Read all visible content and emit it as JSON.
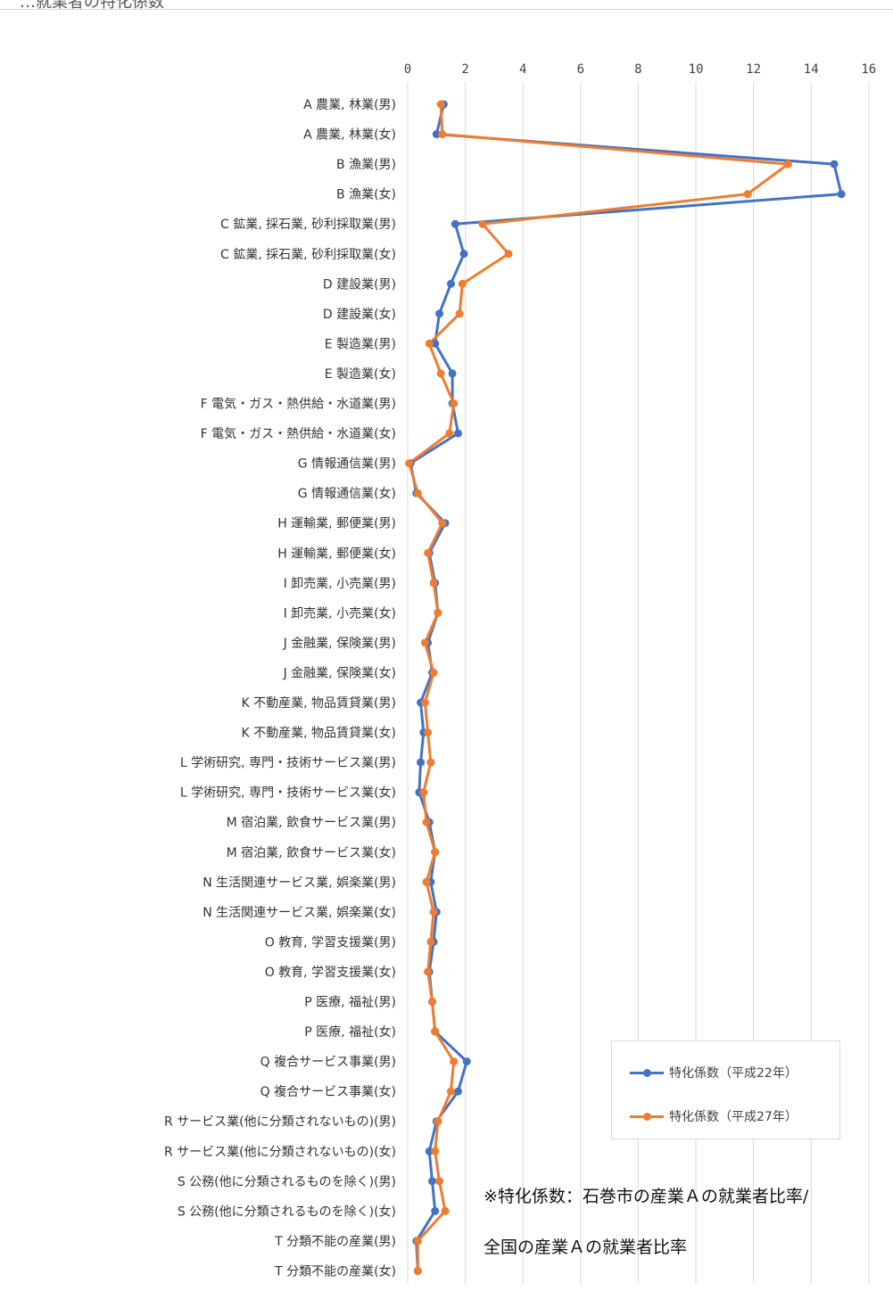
{
  "header": {
    "partial_text": "…就業者の特化係数"
  },
  "chart_data": {
    "type": "line",
    "orientation": "horizontal",
    "x_axis": {
      "min": 0,
      "max": 16,
      "ticks": [
        0,
        2,
        4,
        6,
        8,
        10,
        12,
        14,
        16
      ],
      "position": "top",
      "grid": true
    },
    "categories": [
      "A 農業, 林業(男)",
      "A 農業, 林業(女)",
      "B 漁業(男)",
      "B 漁業(女)",
      "C 鉱業, 採石業, 砂利採取業(男)",
      "C 鉱業, 採石業, 砂利採取業(女)",
      "D 建設業(男)",
      "D 建設業(女)",
      "E 製造業(男)",
      "E 製造業(女)",
      "F 電気・ガス・熱供給・水道業(男)",
      "F 電気・ガス・熱供給・水道業(女)",
      "G 情報通信業(男)",
      "G 情報通信業(女)",
      "H 運輸業, 郵便業(男)",
      "H 運輸業, 郵便業(女)",
      "I 卸売業, 小売業(男)",
      "I 卸売業, 小売業(女)",
      "J 金融業, 保険業(男)",
      "J 金融業, 保険業(女)",
      "K 不動産業, 物品賃貸業(男)",
      "K 不動産業, 物品賃貸業(女)",
      "L 学術研究, 専門・技術サービス業(男)",
      "L 学術研究, 専門・技術サービス業(女)",
      "M 宿泊業, 飲食サービス業(男)",
      "M 宿泊業, 飲食サービス業(女)",
      "N 生活関連サービス業, 娯楽業(男)",
      "N 生活関連サービス業, 娯楽業(女)",
      "O 教育, 学習支援業(男)",
      "O 教育, 学習支援業(女)",
      "P 医療, 福祉(男)",
      "P 医療, 福祉(女)",
      "Q 複合サービス事業(男)",
      "Q 複合サービス事業(女)",
      "R サービス業(他に分類されないもの)(男)",
      "R サービス業(他に分類されないもの)(女)",
      "S 公務(他に分類されるものを除く)(男)",
      "S 公務(他に分類されるものを除く)(女)",
      "T 分類不能の産業(男)",
      "T 分類不能の産業(女)"
    ],
    "series": [
      {
        "name": "特化係数（平成22年）",
        "color": "#4472c4",
        "values": [
          1.25,
          1.0,
          14.8,
          15.05,
          1.65,
          1.95,
          1.5,
          1.1,
          0.95,
          1.55,
          1.55,
          1.75,
          0.1,
          0.3,
          1.3,
          0.75,
          0.95,
          1.05,
          0.7,
          0.85,
          0.45,
          0.55,
          0.45,
          0.4,
          0.75,
          0.95,
          0.8,
          1.0,
          0.9,
          0.75,
          0.85,
          0.95,
          2.05,
          1.75,
          1.0,
          0.75,
          0.85,
          0.95,
          0.3,
          0.35
        ]
      },
      {
        "name": "特化係数（平成27年）",
        "color": "#ed7d31",
        "values": [
          1.15,
          1.2,
          13.2,
          11.8,
          2.6,
          3.5,
          1.9,
          1.8,
          0.75,
          1.15,
          1.6,
          1.45,
          0.05,
          0.35,
          1.2,
          0.7,
          0.9,
          1.05,
          0.6,
          0.9,
          0.6,
          0.7,
          0.8,
          0.55,
          0.65,
          0.95,
          0.65,
          0.9,
          0.8,
          0.7,
          0.85,
          0.95,
          1.6,
          1.5,
          1.05,
          0.95,
          1.1,
          1.3,
          0.35,
          0.35
        ]
      }
    ],
    "legend_position": "bottom-right"
  },
  "note": {
    "line1": "※特化係数：石巻市の産業Ａの就業者比率/",
    "line2": "全国の産業Ａの就業者比率"
  }
}
